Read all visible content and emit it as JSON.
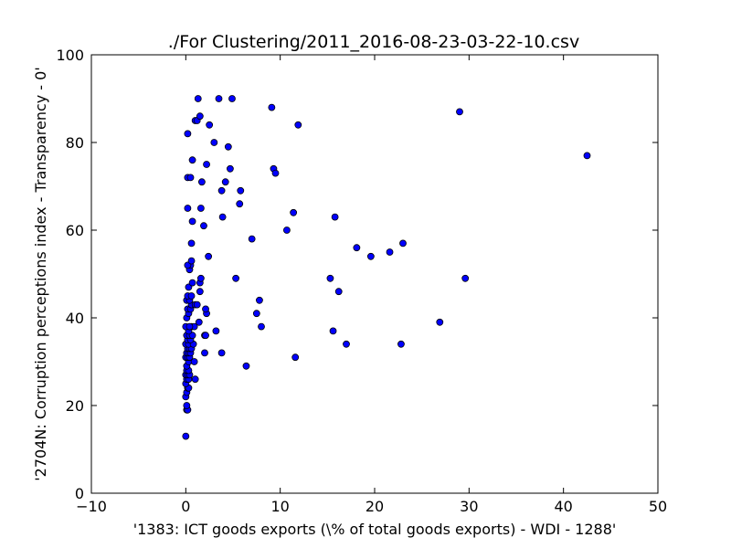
{
  "chart_data": {
    "type": "scatter",
    "title": "./For Clustering/2011_2016-08-23-03-22-10.csv",
    "xlabel": "'1383: ICT goods exports  (\\% of total goods exports) - WDI - 1288'",
    "ylabel": "'2704N: Corruption perceptions index - Transparency - 0'",
    "xlim": [
      -10,
      50
    ],
    "ylim": [
      0,
      100
    ],
    "xticks": [
      -10,
      0,
      10,
      20,
      30,
      40,
      50
    ],
    "xtick_labels": [
      "−10",
      "0",
      "10",
      "20",
      "30",
      "40",
      "50"
    ],
    "yticks": [
      0,
      20,
      40,
      60,
      80,
      100
    ],
    "ytick_labels": [
      "0",
      "20",
      "40",
      "60",
      "80",
      "100"
    ],
    "grid": false,
    "marker_color": "#0000ff",
    "marker_edge": "#000000",
    "points": [
      [
        0.0,
        13
      ],
      [
        0.1,
        19
      ],
      [
        0.2,
        19
      ],
      [
        0.1,
        20
      ],
      [
        0.0,
        22
      ],
      [
        0.1,
        23
      ],
      [
        0.2,
        24
      ],
      [
        0.3,
        24
      ],
      [
        0.0,
        25
      ],
      [
        0.1,
        26
      ],
      [
        0.3,
        26
      ],
      [
        0.0,
        27
      ],
      [
        0.2,
        27
      ],
      [
        0.4,
        27
      ],
      [
        0.1,
        28
      ],
      [
        0.3,
        28
      ],
      [
        0.1,
        29
      ],
      [
        0.3,
        30
      ],
      [
        0.0,
        31
      ],
      [
        0.2,
        31
      ],
      [
        0.4,
        31
      ],
      [
        0.1,
        32
      ],
      [
        0.3,
        32
      ],
      [
        0.5,
        32
      ],
      [
        0.2,
        33
      ],
      [
        0.4,
        33
      ],
      [
        0.6,
        33
      ],
      [
        0.0,
        34
      ],
      [
        0.3,
        34
      ],
      [
        0.8,
        34
      ],
      [
        0.2,
        35
      ],
      [
        0.5,
        35
      ],
      [
        0.1,
        36
      ],
      [
        0.4,
        36
      ],
      [
        0.7,
        36
      ],
      [
        0.3,
        37
      ],
      [
        0.0,
        38
      ],
      [
        0.6,
        38
      ],
      [
        0.9,
        38
      ],
      [
        0.4,
        38
      ],
      [
        0.1,
        40
      ],
      [
        0.3,
        41
      ],
      [
        0.2,
        42
      ],
      [
        0.5,
        42
      ],
      [
        0.6,
        43
      ],
      [
        0.1,
        44
      ],
      [
        0.4,
        44
      ],
      [
        0.2,
        45
      ],
      [
        0.6,
        45
      ],
      [
        0.3,
        47
      ],
      [
        0.7,
        48
      ],
      [
        0.4,
        51
      ],
      [
        0.5,
        52
      ],
      [
        0.2,
        52
      ],
      [
        0.6,
        53
      ],
      [
        0.6,
        57
      ],
      [
        0.7,
        62
      ],
      [
        0.2,
        65
      ],
      [
        0.2,
        72
      ],
      [
        0.5,
        72
      ],
      [
        0.7,
        76
      ],
      [
        0.2,
        82
      ],
      [
        0.9,
        30
      ],
      [
        1.0,
        26
      ],
      [
        1.0,
        43
      ],
      [
        1.2,
        43
      ],
      [
        1.4,
        39
      ],
      [
        1.5,
        46
      ],
      [
        1.5,
        48
      ],
      [
        1.6,
        49
      ],
      [
        1.6,
        65
      ],
      [
        1.7,
        71
      ],
      [
        1.9,
        61
      ],
      [
        1.0,
        85
      ],
      [
        1.2,
        85
      ],
      [
        1.5,
        86
      ],
      [
        1.3,
        90
      ],
      [
        2.0,
        32
      ],
      [
        2.0,
        36
      ],
      [
        2.1,
        36
      ],
      [
        2.2,
        41
      ],
      [
        2.1,
        42
      ],
      [
        2.2,
        75
      ],
      [
        2.4,
        54
      ],
      [
        2.5,
        84
      ],
      [
        3.0,
        80
      ],
      [
        3.2,
        37
      ],
      [
        3.5,
        90
      ],
      [
        3.8,
        32
      ],
      [
        3.9,
        63
      ],
      [
        3.8,
        69
      ],
      [
        4.2,
        71
      ],
      [
        4.5,
        79
      ],
      [
        4.7,
        74
      ],
      [
        4.9,
        90
      ],
      [
        5.3,
        49
      ],
      [
        5.7,
        66
      ],
      [
        5.8,
        69
      ],
      [
        6.4,
        29
      ],
      [
        7.0,
        58
      ],
      [
        7.5,
        41
      ],
      [
        7.8,
        44
      ],
      [
        8.0,
        38
      ],
      [
        9.1,
        88
      ],
      [
        9.3,
        74
      ],
      [
        9.5,
        73
      ],
      [
        10.7,
        60
      ],
      [
        11.4,
        64
      ],
      [
        11.6,
        31
      ],
      [
        11.9,
        84
      ],
      [
        15.3,
        49
      ],
      [
        15.6,
        37
      ],
      [
        15.8,
        63
      ],
      [
        16.2,
        46
      ],
      [
        17.0,
        34
      ],
      [
        18.1,
        56
      ],
      [
        19.6,
        54
      ],
      [
        21.6,
        55
      ],
      [
        22.8,
        34
      ],
      [
        23.0,
        57
      ],
      [
        26.9,
        39
      ],
      [
        29.0,
        87
      ],
      [
        29.6,
        49
      ],
      [
        42.5,
        77
      ]
    ]
  }
}
